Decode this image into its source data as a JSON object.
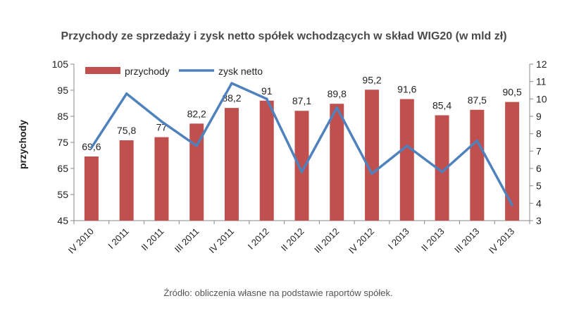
{
  "chart_data": {
    "type": "bar",
    "title": "Przychody ze sprzedaży i zysk netto  spółek wchodzących  w skład WIG20 (w mld zł)",
    "ylabel": "przychody",
    "source": "Źródło: obliczenia własne na podstawie raportów spółek.",
    "categories": [
      "IV 2010",
      "I 2011",
      "II 2011",
      "III 2011",
      "IV 2011",
      "I 2012",
      "II 2012",
      "III 2012",
      "IV 2012",
      "I 2013",
      "II 2013",
      "III 2013",
      "IV 2013"
    ],
    "series": [
      {
        "name": "przychody",
        "type": "bar",
        "axis": "left",
        "color": "#c0504d",
        "values": [
          69.6,
          75.8,
          77,
          82.2,
          88.2,
          91,
          87.1,
          89.8,
          95.2,
          91.6,
          85.4,
          87.5,
          90.5
        ],
        "labels": [
          "69,6",
          "75,8",
          "77",
          "82,2",
          "88,2",
          "91",
          "87,1",
          "89,8",
          "95,2",
          "91,6",
          "85,4",
          "87,5",
          "90,5"
        ]
      },
      {
        "name": "zysk netto",
        "type": "line",
        "axis": "right",
        "color": "#4f81bd",
        "values": [
          7.2,
          10.3,
          8.7,
          7.3,
          10.9,
          10.0,
          5.8,
          9.5,
          5.7,
          7.3,
          5.8,
          7.6,
          3.9
        ]
      }
    ],
    "y_left": {
      "min": 45,
      "max": 105,
      "ticks": [
        "45",
        "55",
        "65",
        "75",
        "85",
        "95",
        "105"
      ]
    },
    "y_right": {
      "min": 3,
      "max": 12,
      "ticks": [
        "3",
        "4",
        "5",
        "6",
        "7",
        "8",
        "9",
        "10",
        "11",
        "12"
      ]
    },
    "grid": false,
    "legend": "top-left"
  }
}
